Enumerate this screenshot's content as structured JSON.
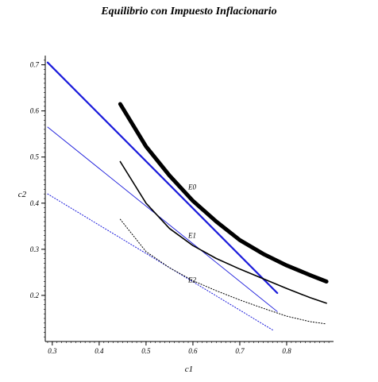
{
  "chart_data": {
    "type": "line",
    "title": "Equilibrio con Impuesto Inflacionario",
    "xlabel": "c1",
    "ylabel": "c2",
    "xlim": [
      0.285,
      0.9
    ],
    "ylim": [
      0.1,
      0.72
    ],
    "x_ticks": [
      0.3,
      0.4,
      0.5,
      0.6,
      0.7,
      0.8
    ],
    "x_tick_labels": [
      "0.3",
      "0.4",
      "0.5",
      "0.6",
      "0.7",
      "0.8"
    ],
    "y_ticks": [
      0.2,
      0.3,
      0.4,
      0.5,
      0.6,
      0.7
    ],
    "y_tick_labels": [
      "0.2",
      "0.3",
      "0.4",
      "0.5",
      "0.6",
      "0.7"
    ],
    "grid": false,
    "series": [
      {
        "name": "",
        "kind": "budget-line",
        "style": "thick",
        "color": "#1a1adb",
        "x": [
          0.29,
          0.78
        ],
        "y": [
          0.705,
          0.205
        ]
      },
      {
        "name": "",
        "kind": "budget-line",
        "style": "thin",
        "color": "#1a1adb",
        "x": [
          0.29,
          0.78
        ],
        "y": [
          0.565,
          0.165
        ]
      },
      {
        "name": "",
        "kind": "budget-line",
        "style": "dotted",
        "color": "#1a1adb",
        "x": [
          0.29,
          0.77
        ],
        "y": [
          0.42,
          0.125
        ]
      },
      {
        "name": "E0",
        "kind": "indifference-curve",
        "style": "thick",
        "color": "#000000",
        "x": [
          0.445,
          0.5,
          0.55,
          0.6,
          0.65,
          0.7,
          0.75,
          0.8,
          0.85,
          0.885
        ],
        "y": [
          0.615,
          0.523,
          0.46,
          0.405,
          0.36,
          0.32,
          0.29,
          0.265,
          0.244,
          0.23
        ]
      },
      {
        "name": "E1",
        "kind": "indifference-curve",
        "style": "medium",
        "color": "#000000",
        "x": [
          0.445,
          0.5,
          0.55,
          0.6,
          0.65,
          0.7,
          0.75,
          0.8,
          0.85,
          0.885
        ],
        "y": [
          0.49,
          0.4,
          0.345,
          0.308,
          0.28,
          0.257,
          0.236,
          0.215,
          0.195,
          0.183
        ]
      },
      {
        "name": "E2",
        "kind": "indifference-curve",
        "style": "dotted",
        "color": "#000000",
        "x": [
          0.445,
          0.5,
          0.55,
          0.6,
          0.65,
          0.7,
          0.75,
          0.8,
          0.85,
          0.885
        ],
        "y": [
          0.365,
          0.295,
          0.26,
          0.232,
          0.21,
          0.19,
          0.172,
          0.155,
          0.143,
          0.138
        ]
      }
    ],
    "annotations": [
      {
        "text": "E0",
        "x": 0.59,
        "y": 0.43
      },
      {
        "text": "E1",
        "x": 0.59,
        "y": 0.325
      },
      {
        "text": "E2",
        "x": 0.59,
        "y": 0.228
      }
    ]
  }
}
